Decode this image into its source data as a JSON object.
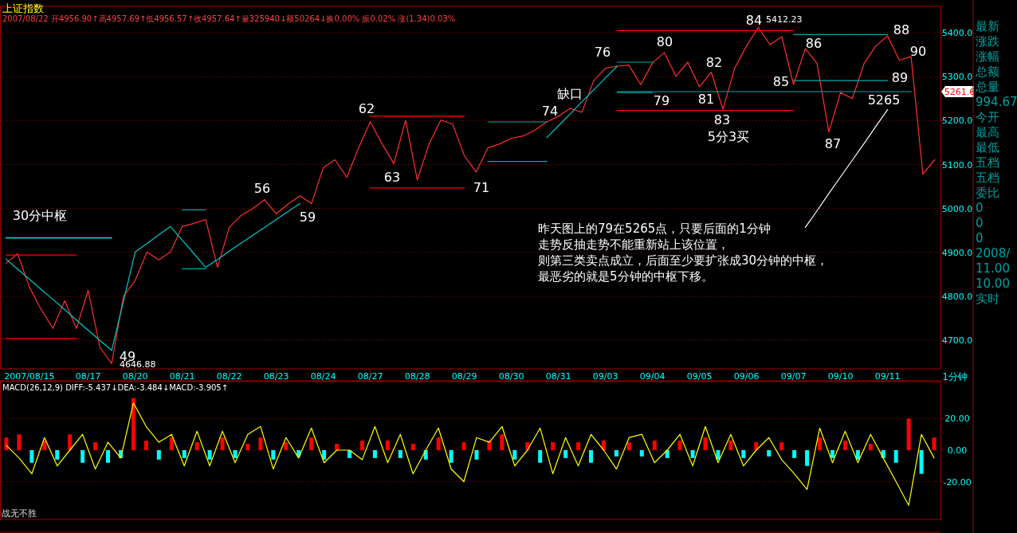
{
  "chart_data": [
    {
      "type": "line",
      "title": "上证指数",
      "subtitle": "2007/08/22 开4956.90↑高4957.69↑低4956.57↑收4957.64↑量325940↓额50264↓换0.00% 振0.02% 涨(1.34)0.03%",
      "xlabel": "1分钟",
      "categories": [
        null,
        null,
        "2007/08/15",
        null,
        null,
        null,
        null,
        "08/17",
        null,
        null,
        null,
        "08/20",
        null,
        null,
        null,
        "08/21",
        null,
        null,
        null,
        "08/22",
        null,
        null,
        null,
        "08/23",
        null,
        null,
        null,
        "08/24",
        null,
        null,
        null,
        "08/27",
        null,
        null,
        null,
        "08/28",
        null,
        null,
        null,
        "08/29",
        null,
        null,
        null,
        "08/30",
        null,
        null,
        null,
        "08/31",
        null,
        null,
        null,
        "09/03",
        null,
        null,
        null,
        "09/04",
        null,
        null,
        null,
        "09/05",
        null,
        null,
        null,
        "09/06",
        null,
        null,
        null,
        "09/07",
        null,
        null,
        null,
        "09/10",
        null,
        null,
        null,
        "09/11",
        null,
        null,
        null,
        null
      ],
      "ylim": [
        4635,
        5460
      ],
      "yticks": [
        {
          "value": 4700,
          "label": "4700.0"
        },
        {
          "value": 4800,
          "label": "4800.0"
        },
        {
          "value": 4900,
          "label": "4900.0"
        },
        {
          "value": 5000,
          "label": "5000.0"
        },
        {
          "value": 5100,
          "label": "5100.0"
        },
        {
          "value": 5200,
          "label": "5200.0"
        },
        {
          "value": 5300,
          "label": "5300.0"
        },
        {
          "value": 5400,
          "label": "5400.0"
        }
      ],
      "grid": "y",
      "series": [
        {
          "color": "#ff3030",
          "values": [
            4875,
            4897,
            4821,
            4770,
            4727,
            4790,
            4727,
            4814,
            4684,
            4647,
            4800,
            4836,
            4901,
            4883,
            4901,
            4959,
            4966,
            4975,
            4866,
            4957,
            4984,
            5000,
            5020,
            4988,
            5010,
            5029,
            5011,
            5093,
            5111,
            5071,
            5138,
            5197,
            5147,
            5102,
            5201,
            5065,
            5147,
            5201,
            5192,
            5120,
            5083,
            5138,
            5147,
            5160,
            5165,
            5178,
            5197,
            5210,
            5228,
            5219,
            5291,
            5319,
            5324,
            5326,
            5282,
            5331,
            5355,
            5301,
            5333,
            5277,
            5310,
            5226,
            5320,
            5370,
            5412,
            5373,
            5391,
            5282,
            5364,
            5330,
            5174,
            5264,
            5250,
            5330,
            5370,
            5393,
            5337,
            5346,
            5078,
            5111
          ]
        },
        {
          "color": "#00c8c8",
          "values": [
            4885,
            4862,
            4839,
            4816,
            4793,
            4770,
            4746,
            4723,
            4700,
            4677,
            4789,
            4901,
            4920,
            4940,
            4959,
            4928,
            4897,
            4866,
            4884,
            4903,
            4921,
            4939,
            4957,
            4975,
            4993,
            5011,
            null,
            null,
            null,
            null,
            null,
            null,
            null,
            null,
            null,
            null,
            null,
            null,
            null,
            null,
            null,
            null,
            null,
            null,
            null,
            null,
            null,
            null,
            null,
            null,
            null,
            null,
            null,
            null,
            null,
            null,
            null,
            null,
            null,
            null,
            null,
            null,
            null,
            null,
            null,
            null,
            null,
            null,
            null,
            null,
            null,
            null,
            null,
            null,
            null,
            null,
            null,
            null,
            null,
            null
          ]
        },
        {
          "color": "#00c8c8",
          "values": [
            null,
            null,
            null,
            null,
            null,
            null,
            null,
            null,
            null,
            null,
            null,
            null,
            null,
            null,
            null,
            null,
            null,
            null,
            null,
            null,
            null,
            null,
            null,
            null,
            null,
            null,
            null,
            null,
            null,
            null,
            null,
            null,
            null,
            null,
            null,
            null,
            null,
            null,
            null,
            null,
            null,
            null,
            null,
            null,
            null,
            null,
            5161,
            5188,
            5215,
            5243,
            5270,
            5297,
            5324,
            null,
            null,
            null,
            null,
            null,
            null,
            null,
            null,
            null,
            null,
            null,
            null,
            null,
            null,
            null,
            null,
            null,
            null,
            null,
            null,
            null,
            null,
            null,
            null,
            null,
            null,
            null
          ]
        },
        {
          "color": "#00ffff",
          "values": [
            4933,
            4933,
            4933,
            4933,
            4933,
            4933,
            4933,
            4933,
            4933,
            4933,
            null,
            null,
            null,
            null,
            null,
            null,
            null,
            null,
            null,
            null,
            null,
            null,
            null,
            null,
            null,
            null,
            null,
            null,
            null,
            null,
            null,
            null,
            null,
            null,
            null,
            null,
            null,
            null,
            null,
            null,
            null,
            null,
            null,
            null,
            null,
            null,
            null,
            null,
            null,
            null,
            null,
            null,
            null,
            null,
            null,
            null,
            null,
            null,
            null,
            null,
            null,
            null,
            null,
            null,
            null,
            null,
            null,
            null,
            null,
            null,
            null,
            null,
            null,
            null,
            null,
            null,
            null,
            null,
            null,
            null
          ]
        },
        {
          "color": "#ff0000",
          "values": [
            4894,
            4894,
            4894,
            4894,
            4894,
            4894,
            4894,
            null,
            null,
            null,
            null,
            null,
            null,
            null,
            null,
            null,
            null,
            null,
            null,
            null,
            null,
            null,
            null,
            null,
            null,
            null,
            null,
            null,
            null,
            null,
            null,
            null,
            null,
            null,
            null,
            null,
            null,
            null,
            null,
            null,
            null,
            null,
            null,
            null,
            null,
            null,
            null,
            null,
            null,
            null,
            null,
            null,
            null,
            null,
            null,
            null,
            null,
            null,
            null,
            null,
            null,
            null,
            null,
            null,
            null,
            null,
            null,
            null,
            null,
            null,
            null,
            null,
            null,
            null,
            null,
            null,
            null,
            null,
            null,
            null
          ]
        },
        {
          "color": "#ff0000",
          "values": [
            4704,
            4704,
            4704,
            4704,
            4704,
            4704,
            4704,
            null,
            null,
            null,
            null,
            null,
            null,
            null,
            null,
            null,
            null,
            null,
            null,
            null,
            null,
            null,
            null,
            null,
            null,
            null,
            null,
            null,
            null,
            null,
            null,
            null,
            null,
            null,
            null,
            null,
            null,
            null,
            null,
            null,
            null,
            null,
            null,
            null,
            null,
            null,
            null,
            null,
            null,
            null,
            null,
            null,
            null,
            null,
            null,
            null,
            null,
            null,
            null,
            null,
            null,
            null,
            null,
            null,
            null,
            null,
            null,
            null,
            null,
            null,
            null,
            null,
            null,
            null,
            null,
            null,
            null,
            null,
            null,
            null
          ]
        },
        {
          "color": "#00a8a8",
          "values": [
            null,
            null,
            null,
            null,
            null,
            null,
            null,
            null,
            null,
            null,
            null,
            null,
            null,
            null,
            null,
            4997,
            4997,
            4997,
            null,
            null,
            null,
            null,
            null,
            null,
            null,
            null,
            null,
            null,
            null,
            null,
            null,
            null,
            null,
            null,
            null,
            null,
            null,
            null,
            null,
            null,
            null,
            null,
            null,
            null,
            null,
            null,
            null,
            null,
            null,
            null,
            null,
            null,
            null,
            null,
            null,
            null,
            null,
            null,
            null,
            null,
            null,
            null,
            null,
            null,
            null,
            null,
            null,
            null,
            null,
            null,
            null,
            null,
            null,
            null,
            null,
            null,
            null,
            null,
            null,
            null
          ]
        },
        {
          "color": "#00a8a8",
          "values": [
            null,
            null,
            null,
            null,
            null,
            null,
            null,
            null,
            null,
            null,
            null,
            null,
            null,
            null,
            null,
            4863,
            4863,
            4863,
            null,
            null,
            null,
            null,
            null,
            null,
            null,
            null,
            null,
            null,
            null,
            null,
            null,
            null,
            null,
            null,
            null,
            null,
            null,
            null,
            null,
            null,
            null,
            null,
            null,
            null,
            null,
            null,
            null,
            null,
            null,
            null,
            null,
            null,
            null,
            null,
            null,
            null,
            null,
            null,
            null,
            null,
            null,
            null,
            null,
            null,
            null,
            null,
            null,
            null,
            null,
            null,
            null,
            null,
            null,
            null,
            null,
            null,
            null,
            null,
            null,
            null
          ]
        },
        {
          "color": "#ff0000",
          "values": [
            null,
            null,
            null,
            null,
            null,
            null,
            null,
            null,
            null,
            null,
            null,
            null,
            null,
            null,
            null,
            null,
            null,
            null,
            null,
            null,
            null,
            null,
            null,
            null,
            null,
            null,
            null,
            null,
            null,
            null,
            null,
            5210,
            5210,
            5210,
            5210,
            5210,
            5210,
            5210,
            5210,
            5210,
            null,
            null,
            null,
            null,
            null,
            null,
            null,
            null,
            null,
            null,
            null,
            null,
            null,
            null,
            null,
            null,
            null,
            null,
            null,
            null,
            null,
            null,
            null,
            null,
            null,
            null,
            null,
            null,
            null,
            null,
            null,
            null,
            null,
            null,
            null,
            null,
            null,
            null,
            null,
            null
          ]
        },
        {
          "color": "#ff0000",
          "values": [
            null,
            null,
            null,
            null,
            null,
            null,
            null,
            null,
            null,
            null,
            null,
            null,
            null,
            null,
            null,
            null,
            null,
            null,
            null,
            null,
            null,
            null,
            null,
            null,
            null,
            null,
            null,
            null,
            null,
            null,
            null,
            5047,
            5047,
            5047,
            5047,
            5047,
            5047,
            5047,
            5047,
            5047,
            null,
            null,
            null,
            null,
            null,
            null,
            null,
            null,
            null,
            null,
            null,
            null,
            null,
            null,
            null,
            null,
            null,
            null,
            null,
            null,
            null,
            null,
            null,
            null,
            null,
            null,
            null,
            null,
            null,
            null,
            null,
            null,
            null,
            null,
            null,
            null,
            null,
            null,
            null,
            null
          ]
        },
        {
          "color": "#00a8a8",
          "values": [
            null,
            null,
            null,
            null,
            null,
            null,
            null,
            null,
            null,
            null,
            null,
            null,
            null,
            null,
            null,
            null,
            null,
            null,
            null,
            null,
            null,
            null,
            null,
            null,
            null,
            null,
            null,
            null,
            null,
            null,
            null,
            null,
            null,
            null,
            null,
            null,
            null,
            null,
            null,
            null,
            null,
            5197,
            5197,
            5197,
            5197,
            5197,
            5197,
            null,
            null,
            null,
            null,
            null,
            null,
            null,
            null,
            null,
            null,
            null,
            null,
            null,
            null,
            null,
            null,
            null,
            null,
            null,
            null,
            null,
            null,
            null,
            null,
            null,
            null,
            null,
            null,
            null,
            null,
            null,
            null,
            null
          ]
        },
        {
          "color": "#00a8a8",
          "values": [
            null,
            null,
            null,
            null,
            null,
            null,
            null,
            null,
            null,
            null,
            null,
            null,
            null,
            null,
            null,
            null,
            null,
            null,
            null,
            null,
            null,
            null,
            null,
            null,
            null,
            null,
            null,
            null,
            null,
            null,
            null,
            null,
            null,
            null,
            null,
            null,
            null,
            null,
            null,
            null,
            null,
            5107,
            5107,
            5107,
            5107,
            5107,
            5107,
            null,
            null,
            null,
            null,
            null,
            null,
            null,
            null,
            null,
            null,
            null,
            null,
            null,
            null,
            null,
            null,
            null,
            null,
            null,
            null,
            null,
            null,
            null,
            null,
            null,
            null,
            null,
            null,
            null,
            null,
            null,
            null,
            null
          ]
        },
        {
          "color": "#00a8a8",
          "values": [
            null,
            null,
            null,
            null,
            null,
            null,
            null,
            null,
            null,
            null,
            null,
            null,
            null,
            null,
            null,
            null,
            null,
            null,
            null,
            null,
            null,
            null,
            null,
            null,
            null,
            null,
            null,
            null,
            null,
            null,
            null,
            null,
            null,
            null,
            null,
            null,
            null,
            null,
            null,
            null,
            null,
            null,
            null,
            null,
            null,
            null,
            null,
            null,
            null,
            null,
            null,
            null,
            5333,
            5333,
            5333,
            5333,
            null,
            null,
            null,
            null,
            null,
            null,
            null,
            null,
            null,
            null,
            null,
            null,
            null,
            null,
            null,
            null,
            null,
            null,
            null,
            null,
            null,
            null,
            null,
            null
          ]
        },
        {
          "color": "#00a8a8",
          "values": [
            null,
            null,
            null,
            null,
            null,
            null,
            null,
            null,
            null,
            null,
            null,
            null,
            null,
            null,
            null,
            null,
            null,
            null,
            null,
            null,
            null,
            null,
            null,
            null,
            null,
            null,
            null,
            null,
            null,
            null,
            null,
            null,
            null,
            null,
            null,
            null,
            null,
            null,
            null,
            null,
            null,
            null,
            null,
            null,
            null,
            null,
            null,
            null,
            null,
            null,
            null,
            null,
            5264,
            5264,
            5264,
            5264,
            null,
            null,
            null,
            null,
            null,
            null,
            null,
            null,
            null,
            null,
            null,
            null,
            null,
            null,
            null,
            null,
            null,
            null,
            null,
            null,
            null,
            null,
            null,
            null
          ]
        },
        {
          "color": "#ff0000",
          "values": [
            null,
            null,
            null,
            null,
            null,
            null,
            null,
            null,
            null,
            null,
            null,
            null,
            null,
            null,
            null,
            null,
            null,
            null,
            null,
            null,
            null,
            null,
            null,
            null,
            null,
            null,
            null,
            null,
            null,
            null,
            null,
            null,
            null,
            null,
            null,
            null,
            null,
            null,
            null,
            null,
            null,
            null,
            null,
            null,
            null,
            null,
            null,
            null,
            null,
            null,
            null,
            null,
            5405,
            5405,
            5405,
            5405,
            5405,
            5405,
            5405,
            5405,
            5405,
            5405,
            5405,
            5405,
            5405,
            5405,
            5405,
            5405,
            null,
            null,
            null,
            null,
            null,
            null,
            null,
            null,
            null,
            null,
            null,
            null
          ]
        },
        {
          "color": "#ff0000",
          "values": [
            null,
            null,
            null,
            null,
            null,
            null,
            null,
            null,
            null,
            null,
            null,
            null,
            null,
            null,
            null,
            null,
            null,
            null,
            null,
            null,
            null,
            null,
            null,
            null,
            null,
            null,
            null,
            null,
            null,
            null,
            null,
            null,
            null,
            null,
            null,
            null,
            null,
            null,
            null,
            null,
            null,
            null,
            null,
            null,
            null,
            null,
            null,
            null,
            null,
            null,
            null,
            null,
            5223,
            5223,
            5223,
            5223,
            5223,
            5223,
            5223,
            5223,
            5223,
            5223,
            5223,
            5223,
            5223,
            5223,
            5223,
            5223,
            null,
            null,
            null,
            null,
            null,
            null,
            null,
            null,
            null,
            null,
            null,
            null
          ]
        },
        {
          "color": "#00a8a8",
          "values": [
            null,
            null,
            null,
            null,
            null,
            null,
            null,
            null,
            null,
            null,
            null,
            null,
            null,
            null,
            null,
            null,
            null,
            null,
            null,
            null,
            null,
            null,
            null,
            null,
            null,
            null,
            null,
            null,
            null,
            null,
            null,
            null,
            null,
            null,
            null,
            null,
            null,
            null,
            null,
            null,
            null,
            null,
            null,
            null,
            null,
            null,
            null,
            null,
            null,
            null,
            null,
            null,
            null,
            null,
            null,
            null,
            null,
            null,
            null,
            null,
            null,
            null,
            null,
            null,
            null,
            null,
            null,
            5396,
            5396,
            5396,
            5396,
            5396,
            5396,
            5396,
            5396,
            5396,
            null,
            null,
            null,
            null
          ]
        },
        {
          "color": "#00a8a8",
          "values": [
            null,
            null,
            null,
            null,
            null,
            null,
            null,
            null,
            null,
            null,
            null,
            null,
            null,
            null,
            null,
            null,
            null,
            null,
            null,
            null,
            null,
            null,
            null,
            null,
            null,
            null,
            null,
            null,
            null,
            null,
            null,
            null,
            null,
            null,
            null,
            null,
            null,
            null,
            null,
            null,
            null,
            null,
            null,
            null,
            null,
            null,
            null,
            null,
            null,
            null,
            null,
            null,
            null,
            null,
            null,
            null,
            null,
            null,
            null,
            null,
            null,
            null,
            null,
            null,
            null,
            null,
            null,
            5291,
            5291,
            5291,
            5291,
            5291,
            5291,
            5291,
            5291,
            5291,
            null,
            null,
            null,
            null
          ]
        },
        {
          "color": "#00a8a8",
          "values": [
            null,
            null,
            null,
            null,
            null,
            null,
            null,
            null,
            null,
            null,
            null,
            null,
            null,
            null,
            null,
            null,
            null,
            null,
            null,
            null,
            null,
            null,
            null,
            null,
            null,
            null,
            null,
            null,
            null,
            null,
            null,
            null,
            null,
            null,
            null,
            null,
            null,
            null,
            null,
            null,
            null,
            null,
            null,
            null,
            null,
            null,
            null,
            null,
            null,
            null,
            null,
            null,
            5266,
            5266,
            5266,
            5266,
            5266,
            5266,
            5266,
            5266,
            5266,
            5266,
            5266,
            5266,
            5266,
            5266,
            5266,
            5266,
            5266,
            5266,
            5266,
            5266,
            5266,
            5266,
            5266,
            5266,
            5266,
            5266,
            null,
            null
          ]
        },
        {
          "color": "#ffffff",
          "values": [
            null,
            null,
            null,
            null,
            null,
            null,
            null,
            null,
            null,
            null,
            null,
            null,
            null,
            null,
            null,
            null,
            null,
            null,
            null,
            null,
            null,
            null,
            null,
            null,
            null,
            null,
            null,
            null,
            null,
            null,
            null,
            null,
            null,
            null,
            null,
            null,
            null,
            null,
            null,
            null,
            null,
            null,
            null,
            null,
            null,
            null,
            null,
            null,
            null,
            null,
            null,
            null,
            null,
            null,
            null,
            null,
            null,
            null,
            null,
            null,
            null,
            null,
            null,
            null,
            null,
            null,
            null,
            null,
            4957,
            4995,
            5034,
            5072,
            5110,
            5148,
            5187,
            5225,
            null,
            null,
            null,
            null
          ]
        }
      ],
      "annotations": [
        "30分中枢",
        "49",
        "4646.88",
        "56",
        "59",
        "62",
        "63",
        "71",
        "74",
        "缺口",
        "76",
        "79",
        "80",
        "81",
        "82",
        "83",
        "5分3买",
        "84",
        "5412.23",
        "85",
        "86",
        "87",
        "88",
        "89",
        "90",
        "5265",
        "5261.6",
        "昨天图上的79在5265点，只要后面的1分钟",
        "走势反抽走势不能重新站上该位置，",
        "则第三类卖点成立，后面至少要扩张成30分钟的中枢，",
        "最恶劣的就是5分钟的中枢下移。"
      ]
    },
    {
      "type": "bar",
      "title": "MACD(26,12,9) DIFF:-5.437↓DEA:-3.484↓MACD:-3.905↑",
      "categories": [
        null,
        null,
        null,
        null,
        null,
        null,
        null,
        null,
        null,
        null,
        null,
        null,
        null,
        null,
        null,
        null,
        null,
        null,
        null,
        null,
        null,
        null,
        null,
        null,
        null,
        null,
        null,
        null,
        null,
        null,
        null,
        null,
        null,
        null,
        null,
        null,
        null,
        null,
        null,
        null,
        null,
        null,
        null,
        null,
        null,
        null,
        null,
        null,
        null,
        null,
        null,
        null,
        null,
        null,
        null,
        null,
        null,
        null,
        null,
        null,
        null,
        null,
        null,
        null,
        null,
        null,
        null,
        null,
        null,
        null,
        null,
        null,
        null,
        null
      ],
      "ylim": [
        -44,
        44
      ],
      "yticks": [
        {
          "value": 20,
          "label": "20.00"
        },
        {
          "value": 0,
          "label": "0.00"
        },
        {
          "value": -20,
          "label": "-20.00"
        }
      ],
      "tick_labels": "y",
      "grid": "y",
      "series": [
        {
          "values": [
            8,
            10,
            -8,
            6,
            -6,
            10,
            -8,
            5,
            -8,
            -5,
            33,
            6,
            -6,
            8,
            -5,
            5,
            -6,
            8,
            -5,
            4,
            8,
            -6,
            5,
            -4,
            8,
            -6,
            4,
            -5,
            6,
            -5,
            6,
            -5,
            4,
            -6,
            8,
            -8,
            5,
            -6,
            6,
            10,
            -6,
            5,
            -8,
            5,
            -5,
            5,
            -8,
            6,
            -4,
            5,
            -4,
            6,
            -5,
            6,
            -5,
            8,
            -6,
            6,
            -5,
            5,
            -4,
            5,
            -5,
            -10,
            8,
            -5,
            6,
            -6,
            4,
            -5,
            -8,
            20,
            -15,
            8
          ],
          "colors": [
            "#ff0000",
            "#ff0000",
            "#00ffff",
            "#ff0000",
            "#00ffff",
            "#ff0000",
            "#00ffff",
            "#ff0000",
            "#00ffff",
            "#00ffff",
            "#ff0000",
            "#ff0000",
            "#00ffff",
            "#ff0000",
            "#00ffff",
            "#ff0000",
            "#00ffff",
            "#ff0000",
            "#00ffff",
            "#ff0000",
            "#ff0000",
            "#00ffff",
            "#ff0000",
            "#00ffff",
            "#ff0000",
            "#00ffff",
            "#ff0000",
            "#00ffff",
            "#ff0000",
            "#00ffff",
            "#ff0000",
            "#00ffff",
            "#ff0000",
            "#00ffff",
            "#ff0000",
            "#00ffff",
            "#ff0000",
            "#00ffff",
            "#ff0000",
            "#ff0000",
            "#00ffff",
            "#ff0000",
            "#00ffff",
            "#ff0000",
            "#00ffff",
            "#ff0000",
            "#00ffff",
            "#ff0000",
            "#00ffff",
            "#ff0000",
            "#00ffff",
            "#ff0000",
            "#00ffff",
            "#ff0000",
            "#00ffff",
            "#ff0000",
            "#00ffff",
            "#ff0000",
            "#00ffff",
            "#ff0000",
            "#00ffff",
            "#ff0000",
            "#00ffff",
            "#00ffff",
            "#ff0000",
            "#00ffff",
            "#ff0000",
            "#00ffff",
            "#ff0000",
            "#00ffff",
            "#00ffff",
            "#ff0000",
            "#00ffff",
            "#ff0000"
          ]
        },
        {
          "type": "line",
          "color": "#ffff00",
          "values": [
            3,
            -5,
            -15,
            8,
            -10,
            0,
            10,
            -12,
            5,
            -5,
            30,
            15,
            5,
            10,
            -10,
            12,
            -10,
            12,
            -8,
            10,
            15,
            -12,
            8,
            -5,
            14,
            -8,
            0,
            0,
            -6,
            15,
            -8,
            10,
            -15,
            0,
            14,
            -12,
            -20,
            8,
            5,
            15,
            -10,
            0,
            14,
            -15,
            8,
            -10,
            10,
            0,
            -12,
            8,
            10,
            -8,
            0,
            10,
            -10,
            15,
            -8,
            10,
            -10,
            0,
            8,
            -6,
            -15,
            -25,
            14,
            -8,
            12,
            -8,
            10,
            -5,
            -20,
            -35,
            10,
            -5
          ]
        }
      ],
      "annotations": [
        "战无不胜"
      ]
    },
    {
      "type": "other",
      "annotations": [
        "最新",
        "涨跌",
        "涨幅",
        "总额",
        "总量",
        "994.67",
        "今开",
        "最高",
        "最低",
        "五档",
        "五档",
        "委比",
        "0",
        "0",
        "0",
        "2008/",
        "11.00",
        "10.00",
        "实时"
      ]
    }
  ]
}
